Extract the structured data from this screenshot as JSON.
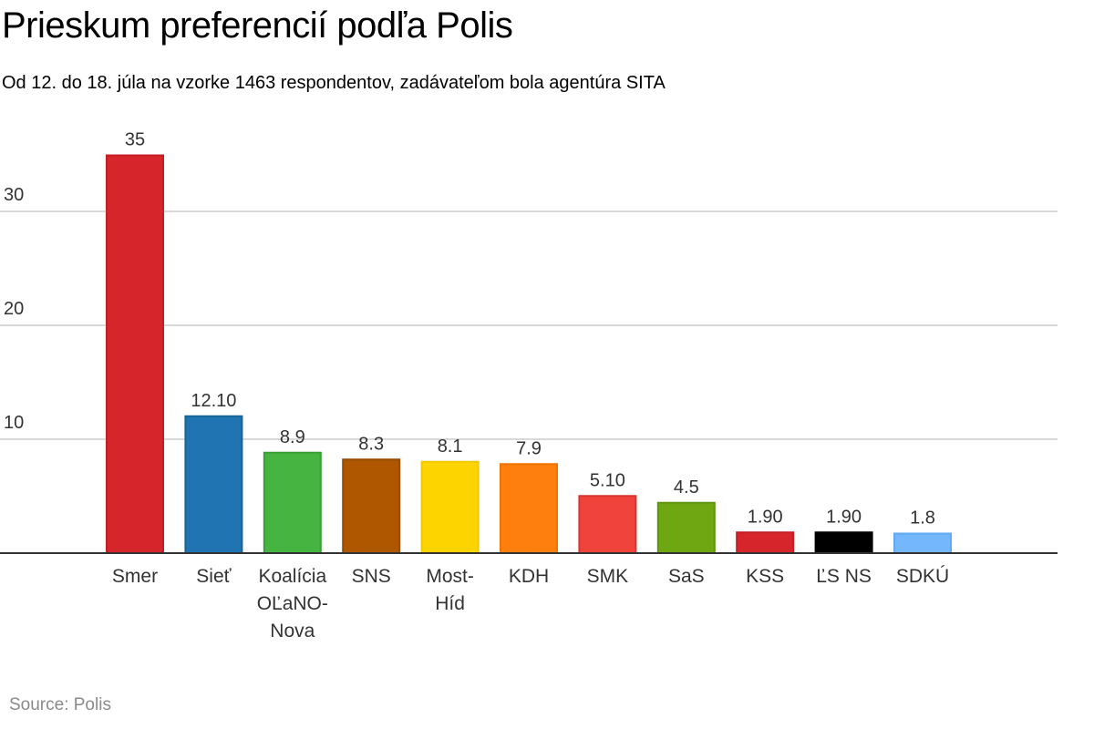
{
  "title": "Prieskum preferencií podľa Polis",
  "subtitle": "Od 12. do 18. júla na vzorke 1463 respondentov, zadávateľom bola agentúra SITA",
  "source": "Source: Polis",
  "chart_data": {
    "type": "bar",
    "title": "Prieskum preferencií podľa Polis",
    "subtitle": "Od 12. do 18. júla na vzorke 1463 respondentov, zadávateľom bola agentúra SITA",
    "xlabel": "",
    "ylabel": "",
    "ylim": [
      0,
      37
    ],
    "yticks": [
      10,
      20,
      30
    ],
    "ytick_labels": [
      "10",
      "20",
      "30"
    ],
    "grid": true,
    "categories": [
      "Smer",
      "Sieť",
      "Koalícia OĽaNO-Nova",
      "SNS",
      "Most-Híd",
      "KDH",
      "SMK",
      "SaS",
      "KSS",
      "ĽS NS",
      "SDKÚ"
    ],
    "category_lines": [
      [
        "Smer"
      ],
      [
        "Sieť"
      ],
      [
        "Koalícia",
        "OĽaNO-",
        "Nova"
      ],
      [
        "SNS"
      ],
      [
        "Most-",
        "Híd"
      ],
      [
        "KDH"
      ],
      [
        "SMK"
      ],
      [
        "SaS"
      ],
      [
        "KSS"
      ],
      [
        "ĽS NS"
      ],
      [
        "SDKÚ"
      ]
    ],
    "values": [
      35,
      12.1,
      8.9,
      8.3,
      8.1,
      7.9,
      5.1,
      4.5,
      1.9,
      1.9,
      1.8
    ],
    "value_labels": [
      "35",
      "12.10",
      "8.9",
      "8.3",
      "8.1",
      "7.9",
      "5.10",
      "4.5",
      "1.90",
      "1.90",
      "1.8"
    ],
    "colors": [
      "#d7262b",
      "#1f74b1",
      "#45b441",
      "#ae5700",
      "#fed400",
      "#ff7f0e",
      "#ef433b",
      "#6ea712",
      "#d7262b",
      "#000000",
      "#74b7fc"
    ],
    "border_colors": [
      "#c41e25",
      "#176398",
      "#3a9e36",
      "#974b00",
      "#f0c800",
      "#f07200",
      "#d93530",
      "#5e9510",
      "#c41e25",
      "#000000",
      "#5ea8f5"
    ],
    "legend": "none"
  }
}
